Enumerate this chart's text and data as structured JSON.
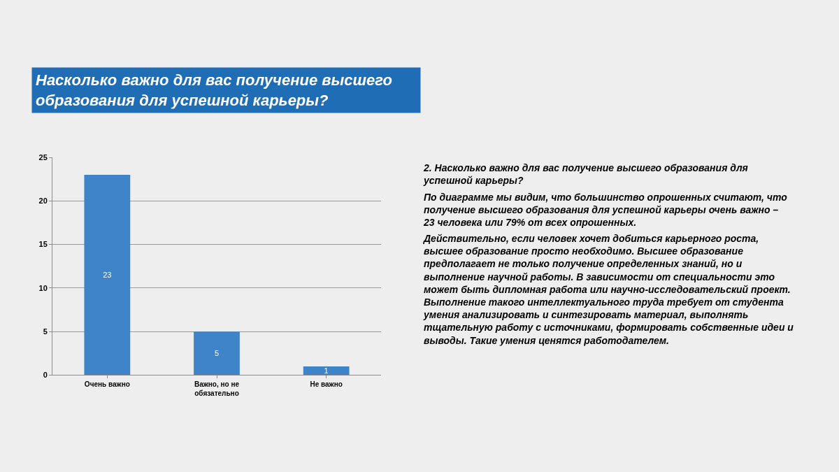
{
  "chart_data": {
    "type": "bar",
    "title": "Насколько важно для вас получение высшего образования для успешной карьеры?",
    "categories": [
      "Очень важно",
      "Важно, но не обязательно",
      "Не важно"
    ],
    "values": [
      23,
      5,
      1
    ],
    "color": "#3f83c9",
    "ylim": [
      0,
      25
    ],
    "yticks": [
      0,
      5,
      10,
      15,
      20,
      25
    ],
    "grid": "y",
    "data_labels": true,
    "annotations": [
      "2. Насколько важно для вас получение высшего образования для успешной карьеры?",
      "По диаграмме мы видим, что большинство опрошенных считают, что получение высшего образования для успешной карьеры очень важно – 23 человека или 79% от всех опрошенных.",
      "Действительно, если человек хочет добиться карьерного роста, высшее образование просто необходимо. Высшее образование предполагает не только получение определенных знаний, но и выполнение научной работы. В зависимости от специальности это может быть дипломная работа или научно-исследовательский проект. Выполнение такого интеллектуального труда требует от студента умения анализировать и синтезировать материал, выполнять тщательную работу с источниками, формировать собственные идеи и выводы. Такие умения ценятся работодателем."
    ]
  }
}
